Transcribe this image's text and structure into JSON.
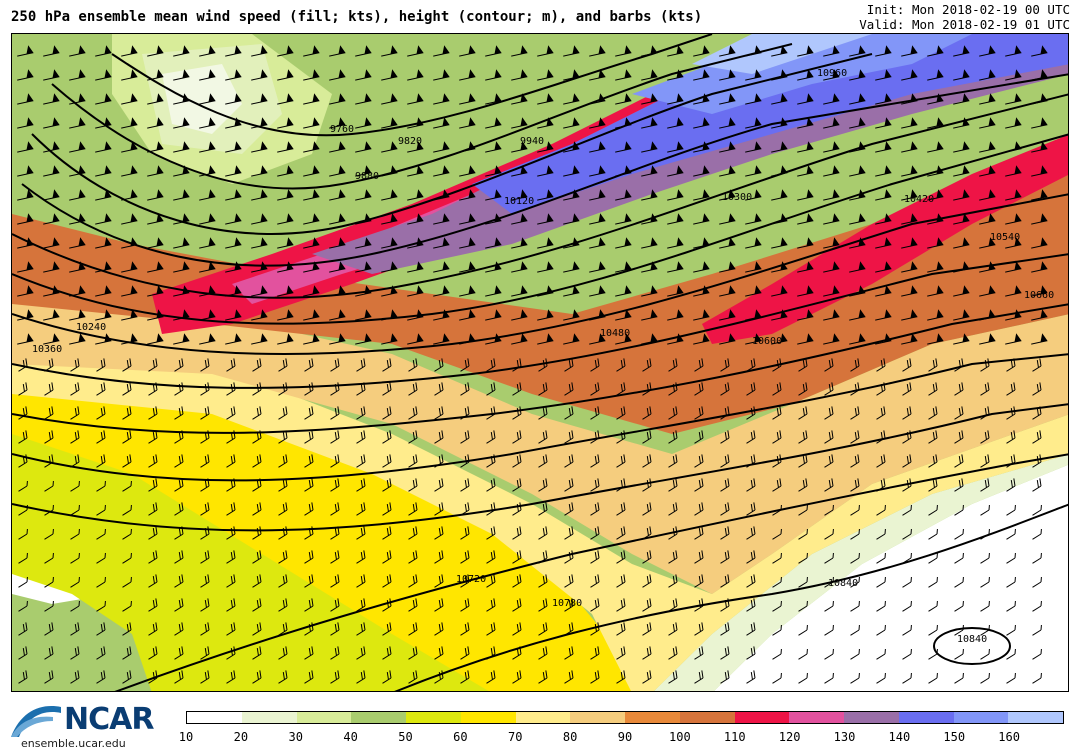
{
  "header": {
    "title": "250 hPa ensemble mean wind speed (fill; kts), height (contour; m), and barbs (kts)",
    "init": "Init: Mon 2018-02-19 00 UTC",
    "valid": "Valid: Mon 2018-02-19 01 UTC"
  },
  "footer": {
    "logo_text": "NCAR",
    "site": "ensemble.ucar.edu"
  },
  "colorbar": {
    "colors": [
      "#ffffff",
      "#eaf4d2",
      "#d8ec99",
      "#a9cc6e",
      "#dde80f",
      "#ffe600",
      "#ffec8c",
      "#f5cd7e",
      "#e8893a",
      "#d6743b",
      "#ee1446",
      "#e2529e",
      "#9a6fa8",
      "#6a6ef1",
      "#8296f8",
      "#b0c7fd"
    ],
    "ticks": [
      "10",
      "20",
      "30",
      "40",
      "50",
      "60",
      "70",
      "80",
      "90",
      "100",
      "110",
      "120",
      "130",
      "140",
      "150",
      "160"
    ]
  },
  "contour_labels": [
    "9760",
    "9820",
    "9880",
    "9940",
    "10120",
    "10240",
    "10360",
    "10300",
    "10420",
    "10480",
    "10540",
    "10600",
    "10660",
    "10720",
    "10780",
    "10840",
    "10840",
    "10960"
  ]
}
